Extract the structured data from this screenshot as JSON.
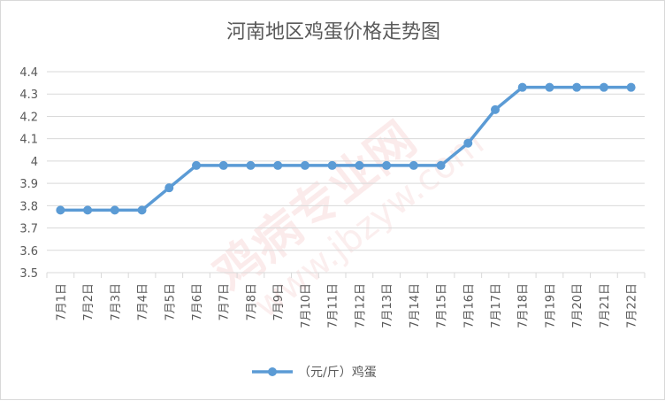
{
  "chart_data": {
    "type": "line",
    "title": "河南地区鸡蛋价格走势图",
    "xlabel": "",
    "ylabel": "",
    "categories": [
      "7月1日",
      "7月2日",
      "7月3日",
      "7月4日",
      "7月5日",
      "7月6日",
      "7月7日",
      "7月8日",
      "7月9日",
      "7月10日",
      "7月11日",
      "7月12日",
      "7月13日",
      "7月14日",
      "7月15日",
      "7月16日",
      "7月17日",
      "7月18日",
      "7月19日",
      "7月20日",
      "7月21日",
      "7月22日"
    ],
    "series": [
      {
        "name": "（元/斤）鸡蛋",
        "values": [
          3.78,
          3.78,
          3.78,
          3.78,
          3.88,
          3.98,
          3.98,
          3.98,
          3.98,
          3.98,
          3.98,
          3.98,
          3.98,
          3.98,
          3.98,
          4.08,
          4.23,
          4.33,
          4.33,
          4.33,
          4.33,
          4.33
        ],
        "color": "#5b9bd5"
      }
    ],
    "ylim": [
      3.5,
      4.4
    ],
    "yticks": [
      "3.5",
      "3.6",
      "3.7",
      "3.8",
      "3.9",
      "4",
      "4.1",
      "4.2",
      "4.3",
      "4.4"
    ],
    "grid": true,
    "legend": "bottom"
  },
  "watermark": {
    "brand": "鸡病专业网",
    "url": "www.jbzyw.com"
  },
  "colors": {
    "line": "#5b9bd5",
    "grid": "#d9d9d9",
    "text": "#595959"
  }
}
